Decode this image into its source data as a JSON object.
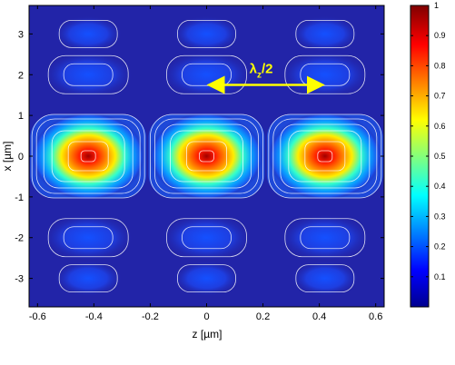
{
  "chart_data": {
    "type": "heatmap",
    "title": "",
    "xlabel": "z [µm]",
    "ylabel": "x [µm]",
    "xlim": [
      -0.63,
      0.63
    ],
    "ylim": [
      -3.7,
      3.7
    ],
    "x_ticks": [
      "-0.6",
      "-0.4",
      "-0.2",
      "0",
      "0.2",
      "0.4",
      "0.6"
    ],
    "y_ticks": [
      "3",
      "2",
      "1",
      "0",
      "-1",
      "-2",
      "-3"
    ],
    "colorbar": {
      "range": [
        0,
        1
      ],
      "ticks": [
        "1",
        "0.9",
        "0.8",
        "0.7",
        "0.6",
        "0.5",
        "0.4",
        "0.3",
        "0.2",
        "0.1"
      ],
      "colormap": "jet"
    },
    "grid": false,
    "peaks": {
      "z": [
        -0.42,
        0,
        0.42
      ],
      "x": [
        3,
        2,
        0,
        -2,
        -3
      ],
      "amplitude_by_row": [
        0.1,
        0.15,
        1.0,
        0.15,
        0.1
      ]
    },
    "annotation": {
      "text_main": "λ",
      "text_sub": "z",
      "text_tail": "/2",
      "arrow_from_z": 0,
      "arrow_to_z": 0.42,
      "arrow_x": 1.75,
      "color": "#ffff00"
    },
    "background_color": "#2224a8",
    "contour_color": "#ffffff"
  }
}
